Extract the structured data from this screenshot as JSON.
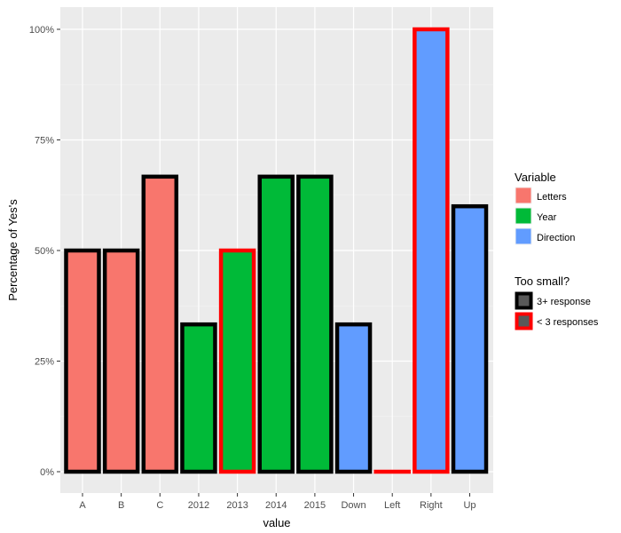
{
  "chart_data": {
    "type": "bar",
    "title": "",
    "xlabel": "value",
    "ylabel": "Percentage of Yes's",
    "ylim": [
      0,
      100
    ],
    "yticks": [
      0,
      25,
      50,
      75,
      100
    ],
    "ytick_labels": [
      "0%",
      "25%",
      "50%",
      "75%",
      "100%"
    ],
    "categories": [
      "A",
      "B",
      "C",
      "2012",
      "2013",
      "2014",
      "2015",
      "Down",
      "Left",
      "Right",
      "Up"
    ],
    "values": [
      50,
      50,
      66.7,
      33.3,
      50,
      66.7,
      66.7,
      33.3,
      0,
      100,
      60
    ],
    "variable": [
      "Letters",
      "Letters",
      "Letters",
      "Year",
      "Year",
      "Year",
      "Year",
      "Direction",
      "Direction",
      "Direction",
      "Direction"
    ],
    "too_small": [
      "3+ response",
      "3+ response",
      "3+ response",
      "3+ response",
      "< 3 responses",
      "3+ response",
      "3+ response",
      "3+ response",
      "< 3 responses",
      "< 3 responses",
      "3+ response"
    ],
    "grid": true,
    "legend_position": "right",
    "legends": [
      {
        "title": "Variable",
        "entries": [
          {
            "label": "Letters",
            "color": "#F8766D"
          },
          {
            "label": "Year",
            "color": "#00BA38"
          },
          {
            "label": "Direction",
            "color": "#619CFF"
          }
        ]
      },
      {
        "title": "Too small?",
        "entries": [
          {
            "label": "3+ response",
            "color": "#000000"
          },
          {
            "label": "< 3 responses",
            "color": "#FF0000"
          }
        ]
      }
    ]
  }
}
